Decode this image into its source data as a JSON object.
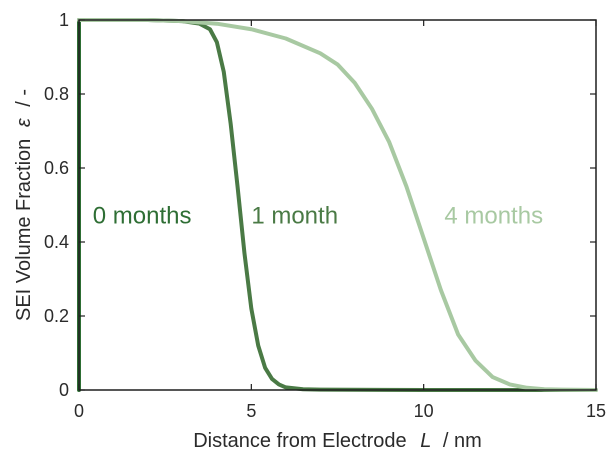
{
  "chart_data": {
    "type": "line",
    "title": "",
    "xlabel": {
      "prefix": "Distance from Electrode",
      "symbol": "L",
      "suffix": "/  nm"
    },
    "ylabel": {
      "prefix": "SEI Volume Fraction",
      "symbol": "ε",
      "suffix": "/  -"
    },
    "xlim": [
      0,
      15
    ],
    "ylim": [
      0,
      1
    ],
    "xticks": [
      0,
      5,
      10,
      15
    ],
    "yticks": [
      0,
      0.2,
      0.4,
      0.6,
      0.8,
      1
    ],
    "xtick_labels": [
      "0",
      "5",
      "10",
      "15"
    ],
    "ytick_labels": [
      "0",
      "0.2",
      "0.4",
      "0.6",
      "0.8",
      "1"
    ],
    "grid": false,
    "legend": "none",
    "series": [
      {
        "name": "0 months",
        "color": "#2e6e34",
        "x": [
          0,
          0.0
        ],
        "y": [
          1,
          0
        ],
        "label_x": 0.4,
        "label_y": 0.45
      },
      {
        "name": "1 month",
        "color": "#4a7a45",
        "x": [
          0,
          1,
          2,
          3,
          3.5,
          3.8,
          4.0,
          4.2,
          4.4,
          4.6,
          4.8,
          5.0,
          5.2,
          5.4,
          5.6,
          5.8,
          6.0,
          6.5,
          7,
          10,
          15
        ],
        "y": [
          1,
          1,
          1,
          0.997,
          0.99,
          0.975,
          0.94,
          0.86,
          0.72,
          0.55,
          0.37,
          0.22,
          0.12,
          0.06,
          0.03,
          0.015,
          0.007,
          0.002,
          0.001,
          0,
          0
        ],
        "label_x": 5.0,
        "label_y": 0.45
      },
      {
        "name": "4 months",
        "color": "#a8c9a2",
        "x": [
          0,
          2,
          3,
          4,
          5,
          6,
          7,
          7.5,
          8,
          8.5,
          9,
          9.5,
          10,
          10.5,
          11,
          11.5,
          12,
          12.5,
          13,
          13.5,
          14,
          15
        ],
        "y": [
          1,
          1,
          0.997,
          0.99,
          0.975,
          0.95,
          0.91,
          0.88,
          0.83,
          0.76,
          0.67,
          0.55,
          0.41,
          0.27,
          0.15,
          0.08,
          0.035,
          0.015,
          0.006,
          0.002,
          0.001,
          0
        ],
        "label_x": 10.6,
        "label_y": 0.45
      }
    ]
  }
}
